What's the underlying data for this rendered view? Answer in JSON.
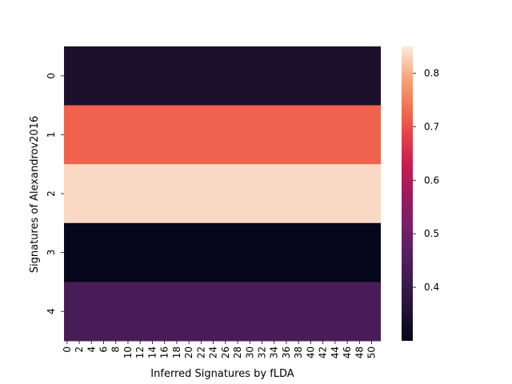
{
  "chart_data": {
    "type": "heatmap",
    "title": "",
    "xlabel": "Inferred Signatures by fLDA",
    "ylabel": "Signatures of Alexandrov2016",
    "x_categories_count": 52,
    "x_tick_labels": [
      "0",
      "2",
      "4",
      "6",
      "8",
      "10",
      "12",
      "14",
      "16",
      "18",
      "20",
      "22",
      "24",
      "26",
      "28",
      "30",
      "32",
      "34",
      "36",
      "38",
      "40",
      "42",
      "44",
      "46",
      "48",
      "50"
    ],
    "y_categories": [
      "0",
      "1",
      "2",
      "3",
      "4"
    ],
    "row_values": [
      0.345,
      0.72,
      0.835,
      0.305,
      0.435
    ],
    "colorbar": {
      "vmin": 0.3,
      "vmax": 0.85,
      "ticks": [
        "0.4",
        "0.5",
        "0.6",
        "0.7",
        "0.8"
      ],
      "tick_values": [
        0.4,
        0.5,
        0.6,
        0.7,
        0.8
      ],
      "colormap": "rocket"
    },
    "grid": false,
    "legend": "colorbar-right"
  }
}
